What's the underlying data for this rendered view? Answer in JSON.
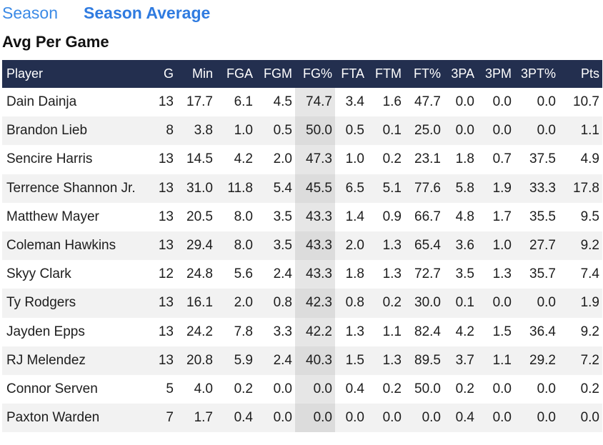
{
  "tabs": [
    "Season",
    "Season Average"
  ],
  "heading": "Avg Per Game",
  "table": {
    "columns": [
      "Player",
      "G",
      "Min",
      "FGA",
      "FGM",
      "FG%",
      "FTA",
      "FTM",
      "FT%",
      "3PA",
      "3PM",
      "3PT%",
      "Pts"
    ],
    "rows": [
      [
        "Dain Dainja",
        "13",
        "17.7",
        "6.1",
        "4.5",
        "74.7",
        "3.4",
        "1.6",
        "47.7",
        "0.0",
        "0.0",
        "0.0",
        "10.7"
      ],
      [
        "Brandon Lieb",
        "8",
        "3.8",
        "1.0",
        "0.5",
        "50.0",
        "0.5",
        "0.1",
        "25.0",
        "0.0",
        "0.0",
        "0.0",
        "1.1"
      ],
      [
        "Sencire Harris",
        "13",
        "14.5",
        "4.2",
        "2.0",
        "47.3",
        "1.0",
        "0.2",
        "23.1",
        "1.8",
        "0.7",
        "37.5",
        "4.9"
      ],
      [
        "Terrence Shannon Jr.",
        "13",
        "31.0",
        "11.8",
        "5.4",
        "45.5",
        "6.5",
        "5.1",
        "77.6",
        "5.8",
        "1.9",
        "33.3",
        "17.8"
      ],
      [
        "Matthew Mayer",
        "13",
        "20.5",
        "8.0",
        "3.5",
        "43.3",
        "1.4",
        "0.9",
        "66.7",
        "4.8",
        "1.7",
        "35.5",
        "9.5"
      ],
      [
        "Coleman Hawkins",
        "13",
        "29.4",
        "8.0",
        "3.5",
        "43.3",
        "2.0",
        "1.3",
        "65.4",
        "3.6",
        "1.0",
        "27.7",
        "9.2"
      ],
      [
        "Skyy Clark",
        "12",
        "24.8",
        "5.6",
        "2.4",
        "43.3",
        "1.8",
        "1.3",
        "72.7",
        "3.5",
        "1.3",
        "35.7",
        "7.4"
      ],
      [
        "Ty Rodgers",
        "13",
        "16.1",
        "2.0",
        "0.8",
        "42.3",
        "0.8",
        "0.2",
        "30.0",
        "0.1",
        "0.0",
        "0.0",
        "1.9"
      ],
      [
        "Jayden Epps",
        "13",
        "24.2",
        "7.8",
        "3.3",
        "42.2",
        "1.3",
        "1.1",
        "82.4",
        "4.2",
        "1.5",
        "36.4",
        "9.2"
      ],
      [
        "RJ Melendez",
        "13",
        "20.8",
        "5.9",
        "2.4",
        "40.3",
        "1.5",
        "1.3",
        "89.5",
        "3.7",
        "1.1",
        "29.2",
        "7.2"
      ],
      [
        "Connor Serven",
        "5",
        "4.0",
        "0.2",
        "0.0",
        "0.0",
        "0.4",
        "0.2",
        "50.0",
        "0.2",
        "0.0",
        "0.0",
        "0.2"
      ],
      [
        "Paxton Warden",
        "7",
        "1.7",
        "0.4",
        "0.0",
        "0.0",
        "0.0",
        "0.0",
        "0.0",
        "0.4",
        "0.0",
        "0.0",
        "0.0"
      ]
    ]
  }
}
